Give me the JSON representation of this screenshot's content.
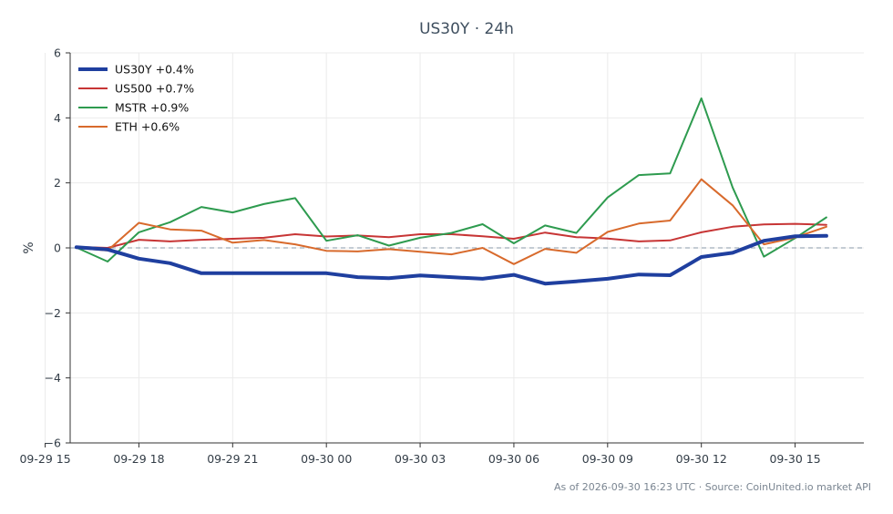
{
  "chart_data": {
    "type": "line",
    "title": "US30Y · 24h",
    "xlabel": "",
    "ylabel": "%",
    "ylim": [
      -6,
      6
    ],
    "yticks": [
      -6,
      -4,
      -2,
      0,
      2,
      4,
      6
    ],
    "ytick_labels": [
      "−6",
      "−4",
      "−2",
      "0",
      "2",
      "4",
      "6"
    ],
    "xlim": [
      "2026-09-29 15:48",
      "2026-09-30 17:12"
    ],
    "xticks": [
      "2026-09-29 15:00",
      "2026-09-29 18:00",
      "2026-09-29 21:00",
      "2026-09-30 00:00",
      "2026-09-30 03:00",
      "2026-09-30 06:00",
      "2026-09-30 09:00",
      "2026-09-30 12:00",
      "2026-09-30 15:00"
    ],
    "xtick_labels": [
      "09-29 15",
      "09-29 18",
      "09-29 21",
      "09-30 00",
      "09-30 03",
      "09-30 06",
      "09-30 09",
      "09-30 12",
      "09-30 15"
    ],
    "x": [
      "2026-09-29 16:00",
      "2026-09-29 17:00",
      "2026-09-29 18:00",
      "2026-09-29 19:00",
      "2026-09-29 20:00",
      "2026-09-29 21:00",
      "2026-09-29 22:00",
      "2026-09-29 23:00",
      "2026-09-30 00:00",
      "2026-09-30 01:00",
      "2026-09-30 02:00",
      "2026-09-30 03:00",
      "2026-09-30 04:00",
      "2026-09-30 05:00",
      "2026-09-30 06:00",
      "2026-09-30 07:00",
      "2026-09-30 08:00",
      "2026-09-30 09:00",
      "2026-09-30 10:00",
      "2026-09-30 11:00",
      "2026-09-30 12:00",
      "2026-09-30 13:00",
      "2026-09-30 14:00",
      "2026-09-30 15:00",
      "2026-09-30 16:00"
    ],
    "series": [
      {
        "name": "US30Y +0.4%",
        "color": "#1f3f9f",
        "width": "thick",
        "values": [
          0.02,
          -0.05,
          -0.33,
          -0.47,
          -0.78,
          -0.78,
          -0.78,
          -0.78,
          -0.78,
          -0.9,
          -0.93,
          -0.85,
          -0.9,
          -0.95,
          -0.83,
          -1.1,
          -1.03,
          -0.95,
          -0.82,
          -0.84,
          -0.28,
          -0.15,
          0.22,
          0.36,
          0.37
        ]
      },
      {
        "name": "US500 +0.7%",
        "color": "#c73535",
        "width": "normal",
        "values": [
          0.03,
          0.0,
          0.25,
          0.2,
          0.25,
          0.28,
          0.31,
          0.42,
          0.35,
          0.38,
          0.33,
          0.42,
          0.42,
          0.36,
          0.28,
          0.47,
          0.33,
          0.29,
          0.2,
          0.23,
          0.48,
          0.65,
          0.72,
          0.74,
          0.71
        ]
      },
      {
        "name": "MSTR +0.9%",
        "color": "#2e9b4f",
        "width": "normal",
        "values": [
          0.01,
          -0.42,
          0.48,
          0.79,
          1.26,
          1.09,
          1.35,
          1.53,
          0.22,
          0.39,
          0.07,
          0.31,
          0.46,
          0.73,
          0.14,
          0.69,
          0.46,
          1.55,
          2.24,
          2.29,
          4.6,
          1.86,
          -0.27,
          0.3,
          0.94
        ]
      },
      {
        "name": "ETH +0.6%",
        "color": "#d86a2c",
        "width": "normal",
        "values": [
          0.0,
          -0.08,
          0.77,
          0.57,
          0.53,
          0.16,
          0.24,
          0.11,
          -0.09,
          -0.11,
          -0.04,
          -0.12,
          -0.2,
          0.0,
          -0.5,
          -0.03,
          -0.15,
          0.49,
          0.75,
          0.84,
          2.11,
          1.31,
          0.11,
          0.32,
          0.65
        ]
      }
    ],
    "baseline": 0,
    "grid": true,
    "legend": "top-left"
  },
  "footer": "As of 2026-09-30 16:23 UTC · Source: CoinUnited.io market API"
}
